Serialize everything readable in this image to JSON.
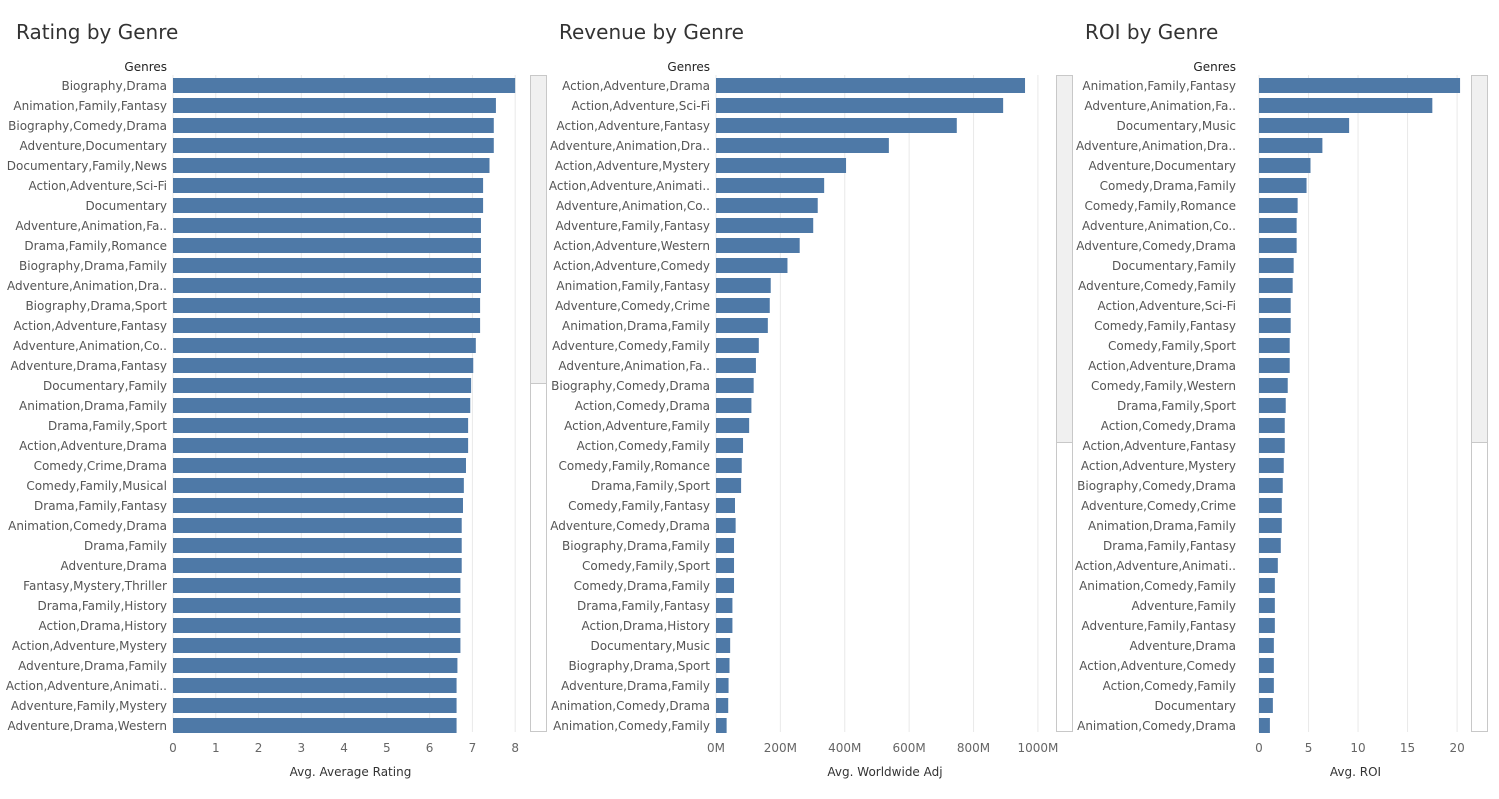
{
  "colors": {
    "bar": "#4e79a7",
    "grid": "#e9e9e9",
    "text": "#555555"
  },
  "chart_data": [
    {
      "type": "bar",
      "orientation": "horizontal",
      "title": "Rating by Genre",
      "ylabel": "Genres",
      "xlabel": "Avg. Average Rating",
      "xlim": [
        0,
        8.3
      ],
      "ticks": [
        0,
        1,
        2,
        3,
        4,
        5,
        6,
        7,
        8
      ],
      "tick_labels": [
        "0",
        "1",
        "2",
        "3",
        "4",
        "5",
        "6",
        "7",
        "8"
      ],
      "categories": [
        "Biography,Drama",
        "Animation,Family,Fantasy",
        "Biography,Comedy,Drama",
        "Adventure,Documentary",
        "Documentary,Family,News",
        "Action,Adventure,Sci-Fi",
        "Documentary",
        "Adventure,Animation,Fa..",
        "Drama,Family,Romance",
        "Biography,Drama,Family",
        "Adventure,Animation,Dra..",
        "Biography,Drama,Sport",
        "Action,Adventure,Fantasy",
        "Adventure,Animation,Co..",
        "Adventure,Drama,Fantasy",
        "Documentary,Family",
        "Animation,Drama,Family",
        "Drama,Family,Sport",
        "Action,Adventure,Drama",
        "Comedy,Crime,Drama",
        "Comedy,Family,Musical",
        "Drama,Family,Fantasy",
        "Animation,Comedy,Drama",
        "Drama,Family",
        "Adventure,Drama",
        "Fantasy,Mystery,Thriller",
        "Drama,Family,History",
        "Action,Drama,History",
        "Action,Adventure,Mystery",
        "Adventure,Drama,Family",
        "Action,Adventure,Animati..",
        "Adventure,Family,Mystery",
        "Adventure,Drama,Western"
      ],
      "values": [
        8.0,
        7.55,
        7.5,
        7.5,
        7.4,
        7.25,
        7.25,
        7.2,
        7.2,
        7.2,
        7.2,
        7.18,
        7.18,
        7.08,
        7.02,
        6.97,
        6.95,
        6.9,
        6.9,
        6.85,
        6.8,
        6.78,
        6.75,
        6.75,
        6.75,
        6.72,
        6.72,
        6.72,
        6.72,
        6.65,
        6.63,
        6.63,
        6.63
      ],
      "scroll_fraction": 0.47
    },
    {
      "type": "bar",
      "orientation": "horizontal",
      "title": "Revenue by Genre",
      "ylabel": "Genres",
      "xlabel": "Avg. Worldwide Adj",
      "xlim": [
        0,
        1050
      ],
      "ticks": [
        0,
        200,
        400,
        600,
        800,
        1000
      ],
      "tick_labels": [
        "0M",
        "200M",
        "400M",
        "600M",
        "800M",
        "1000M"
      ],
      "categories": [
        "Action,Adventure,Drama",
        "Action,Adventure,Sci-Fi",
        "Action,Adventure,Fantasy",
        "Adventure,Animation,Dra..",
        "Action,Adventure,Mystery",
        "Action,Adventure,Animati..",
        "Adventure,Animation,Co..",
        "Adventure,Family,Fantasy",
        "Action,Adventure,Western",
        "Action,Adventure,Comedy",
        "Animation,Family,Fantasy",
        "Adventure,Comedy,Crime",
        "Animation,Drama,Family",
        "Adventure,Comedy,Family",
        "Adventure,Animation,Fa..",
        "Biography,Comedy,Drama",
        "Action,Comedy,Drama",
        "Action,Adventure,Family",
        "Action,Comedy,Family",
        "Comedy,Family,Romance",
        "Drama,Family,Sport",
        "Comedy,Family,Fantasy",
        "Adventure,Comedy,Drama",
        "Biography,Drama,Family",
        "Comedy,Family,Sport",
        "Comedy,Drama,Family",
        "Drama,Family,Fantasy",
        "Action,Drama,History",
        "Documentary,Music",
        "Biography,Drama,Sport",
        "Adventure,Drama,Family",
        "Animation,Comedy,Drama",
        "Animation,Comedy,Family"
      ],
      "values": [
        960,
        892,
        748,
        537,
        404,
        336,
        316,
        302,
        260,
        222,
        170,
        167,
        161,
        133,
        124,
        117,
        110,
        103,
        84,
        80,
        78,
        59,
        61,
        56,
        56,
        56,
        51,
        51,
        44,
        42,
        39,
        38,
        33
      ],
      "scroll_fraction": 0.56
    },
    {
      "type": "bar",
      "orientation": "horizontal",
      "title": "ROI by Genre",
      "ylabel": "Genres",
      "xlabel": "Avg. ROI",
      "xlim": [
        0,
        21
      ],
      "ticks": [
        0,
        5,
        10,
        15,
        20
      ],
      "tick_labels": [
        "0",
        "5",
        "10",
        "15",
        "20"
      ],
      "categories": [
        "Animation,Family,Fantasy",
        "Adventure,Animation,Fa..",
        "Documentary,Music",
        "Adventure,Animation,Dra..",
        "Adventure,Documentary",
        "Comedy,Drama,Family",
        "Comedy,Family,Romance",
        "Adventure,Animation,Co..",
        "Adventure,Comedy,Drama",
        "Documentary,Family",
        "Adventure,Comedy,Family",
        "Action,Adventure,Sci-Fi",
        "Comedy,Family,Fantasy",
        "Comedy,Family,Sport",
        "Action,Adventure,Drama",
        "Comedy,Family,Western",
        "Drama,Family,Sport",
        "Action,Comedy,Drama",
        "Action,Adventure,Fantasy",
        "Action,Adventure,Mystery",
        "Biography,Comedy,Drama",
        "Adventure,Comedy,Crime",
        "Animation,Drama,Family",
        "Drama,Family,Fantasy",
        "Action,Adventure,Animati..",
        "Animation,Comedy,Family",
        "Adventure,Family",
        "Adventure,Family,Fantasy",
        "Adventure,Drama",
        "Action,Adventure,Comedy",
        "Action,Comedy,Family",
        "Documentary",
        "Animation,Comedy,Drama"
      ],
      "values": [
        20.3,
        17.5,
        9.1,
        6.4,
        5.2,
        4.8,
        3.9,
        3.8,
        3.8,
        3.5,
        3.4,
        3.2,
        3.2,
        3.1,
        3.1,
        2.9,
        2.7,
        2.6,
        2.6,
        2.5,
        2.4,
        2.3,
        2.3,
        2.2,
        1.9,
        1.6,
        1.6,
        1.6,
        1.5,
        1.5,
        1.5,
        1.4,
        1.1
      ],
      "scroll_fraction": 0.56
    }
  ]
}
